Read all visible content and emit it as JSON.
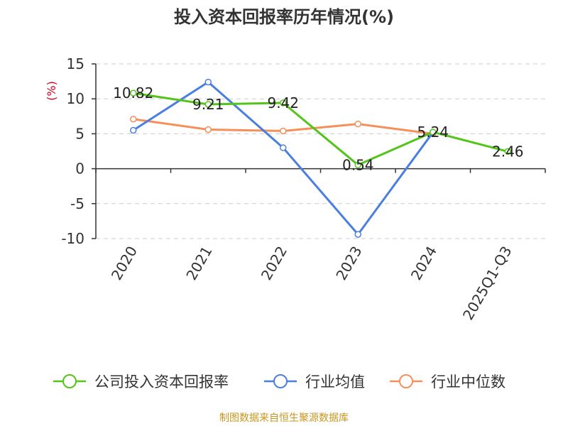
{
  "chart_data": {
    "type": "line",
    "title": "投入资本回报率历年情况(%)",
    "ylabel": "(%)",
    "xlabel": "",
    "categories": [
      "2020",
      "2021",
      "2022",
      "2023",
      "2024",
      "2025Q1-Q3"
    ],
    "y_ticks": [
      15,
      10,
      5,
      0,
      -5,
      -10
    ],
    "y_tick_labels": [
      "15",
      "10",
      "5",
      "0",
      "-5",
      "-10"
    ],
    "ylim": [
      -10,
      15
    ],
    "grid": true,
    "legend_position": "bottom",
    "series": [
      {
        "name": "公司投入资本回报率",
        "color": "#52c41a",
        "values": [
          10.82,
          9.21,
          9.42,
          0.54,
          5.24,
          2.46
        ],
        "labels": [
          "10.82",
          "9.21",
          "9.42",
          "0.54",
          "5.24",
          "2.46"
        ]
      },
      {
        "name": "行业均值",
        "color": "#4a7fe0",
        "values": [
          5.5,
          12.4,
          3.0,
          -9.4,
          5.2,
          null
        ],
        "labels": []
      },
      {
        "name": "行业中位数",
        "color": "#f5905a",
        "values": [
          7.1,
          5.6,
          5.4,
          6.4,
          5.0,
          null
        ],
        "labels": []
      }
    ]
  },
  "source": "制图数据来自恒生聚源数据库"
}
